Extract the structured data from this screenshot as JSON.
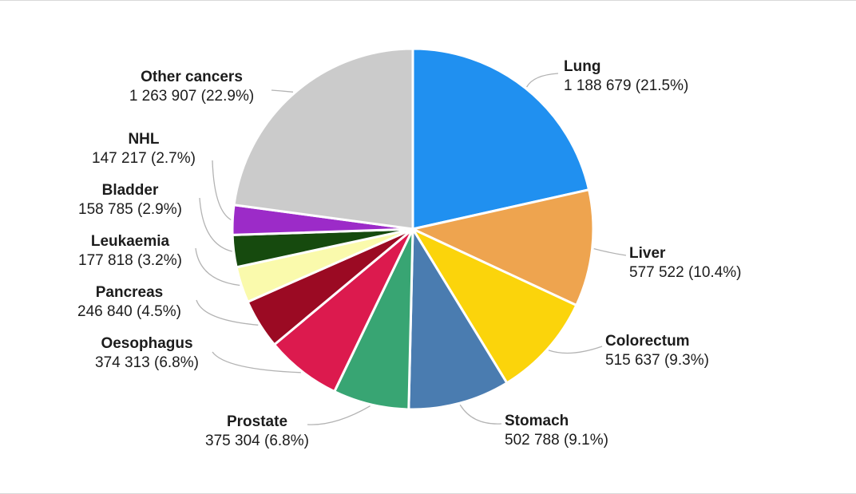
{
  "figure": {
    "background": "#FFFFFF",
    "border_color": "#D9D9D9"
  },
  "chart_data": {
    "type": "pie",
    "title": "",
    "direction": "clockwise",
    "start_angle_deg": 0,
    "legend_position": "outside-callout-labels",
    "slice_border_color": "#FFFFFF",
    "leader_line_color": "#B3B3B3",
    "label_text_color": "#1C1C1C",
    "slices": [
      {
        "label": "Lung",
        "value": 1188679,
        "percent": 21.5,
        "display": "1 188 679 (21.5%)",
        "color": "#2090F0"
      },
      {
        "label": "Liver",
        "value": 577522,
        "percent": 10.4,
        "display": "577 522 (10.4%)",
        "color": "#EEA44F"
      },
      {
        "label": "Colorectum",
        "value": 515637,
        "percent": 9.3,
        "display": "515 637 (9.3%)",
        "color": "#FBD40B"
      },
      {
        "label": "Stomach",
        "value": 502788,
        "percent": 9.1,
        "display": "502 788 (9.1%)",
        "color": "#4A7CB0"
      },
      {
        "label": "Prostate",
        "value": 375304,
        "percent": 6.8,
        "display": "375 304 (6.8%)",
        "color": "#38A573"
      },
      {
        "label": "Oesophagus",
        "value": 374313,
        "percent": 6.8,
        "display": "374 313 (6.8%)",
        "color": "#DC1A4E"
      },
      {
        "label": "Pancreas",
        "value": 246840,
        "percent": 4.5,
        "display": "246 840 (4.5%)",
        "color": "#9B0A23"
      },
      {
        "label": "Leukaemia",
        "value": 177818,
        "percent": 3.2,
        "display": "177 818 (3.2%)",
        "color": "#FAFAAC"
      },
      {
        "label": "Bladder",
        "value": 158785,
        "percent": 2.9,
        "display": "158 785 (2.9%)",
        "color": "#164A0E"
      },
      {
        "label": "NHL",
        "value": 147217,
        "percent": 2.7,
        "display": "147 217 (2.7%)",
        "color": "#9C2BC8"
      },
      {
        "label": "Other cancers",
        "value": 1263907,
        "percent": 22.9,
        "display": "1 263 907 (22.9%)",
        "color": "#CBCBCB"
      }
    ]
  }
}
